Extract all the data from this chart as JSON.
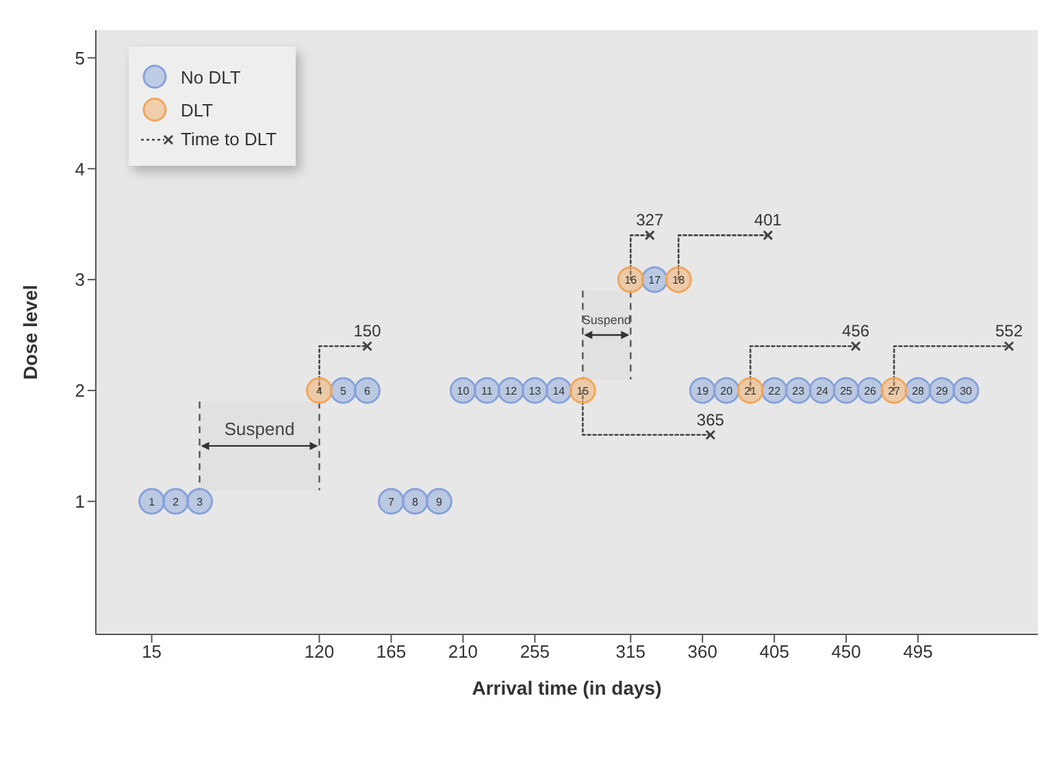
{
  "chart_data": {
    "type": "scatter",
    "xlabel": "Arrival time (in days)",
    "ylabel": "Dose level",
    "xlim": [
      -20,
      570
    ],
    "xticks": [
      15,
      120,
      165,
      210,
      255,
      315,
      360,
      405,
      450,
      495
    ],
    "ylim": [
      -0.2,
      5.25
    ],
    "yticks": [
      1,
      2,
      3,
      4,
      5
    ],
    "grid": false,
    "legend": "top left",
    "series": [
      {
        "name": "No DLT",
        "marker": "circle",
        "color": "#86a2da",
        "x": [
          15,
          30,
          45,
          135,
          150,
          165,
          180,
          195,
          210,
          225,
          240,
          255,
          270,
          330,
          360,
          375,
          405,
          420,
          435,
          450,
          465,
          495,
          510,
          525
        ],
        "values": [
          1,
          1,
          1,
          2,
          2,
          1,
          1,
          1,
          2,
          2,
          2,
          2,
          2,
          3,
          2,
          2,
          2,
          2,
          2,
          2,
          2,
          2,
          2,
          2
        ]
      },
      {
        "name": "DLT",
        "marker": "circle",
        "color": "#f2a65a",
        "x": [
          120,
          285,
          315,
          345,
          390,
          480
        ],
        "values": [
          2,
          2,
          3,
          3,
          2,
          2
        ]
      },
      {
        "name": "Time to DLT",
        "type": "line",
        "line_style": "dotted",
        "color": "#444444",
        "x": [
          120,
          120,
          150
        ],
        "values": [
          2,
          2.4,
          2.4
        ]
      },
      {
        "type": "line",
        "line_style": "dotted",
        "color": "#444444",
        "x": [
          285,
          285,
          365
        ],
        "values": [
          2,
          1.6,
          1.6
        ]
      },
      {
        "type": "line",
        "line_style": "dotted",
        "color": "#444444",
        "x": [
          315,
          315,
          327
        ],
        "values": [
          3,
          3.4,
          3.4
        ]
      },
      {
        "type": "line",
        "line_style": "dotted",
        "color": "#444444",
        "x": [
          345,
          345,
          401
        ],
        "values": [
          3,
          3.4,
          3.4
        ]
      },
      {
        "type": "line",
        "line_style": "dotted",
        "color": "#444444",
        "x": [
          390,
          390,
          456
        ],
        "values": [
          2,
          2.4,
          2.4
        ]
      },
      {
        "type": "line",
        "line_style": "dotted",
        "color": "#444444",
        "x": [
          480,
          480,
          552
        ],
        "values": [
          2,
          2.4,
          2.4
        ]
      },
      {
        "marker": "cross",
        "color": "#444444",
        "x": [
          150,
          365,
          327,
          401,
          456,
          552
        ],
        "values": [
          2.4,
          1.6,
          3.4,
          3.4,
          2.4,
          2.4
        ]
      }
    ],
    "bands": [
      {
        "axis": "x",
        "from": 45,
        "to": 120,
        "label": "Suspend",
        "color": "#dedede"
      },
      {
        "axis": "x",
        "from": 285,
        "to": 315,
        "label": "Suspend",
        "color": "#dedede"
      }
    ],
    "annotations": [
      {
        "text": "150",
        "x": 150,
        "y": 2.4
      },
      {
        "text": "365",
        "x": 365,
        "y": 1.6
      },
      {
        "text": "327",
        "x": 327,
        "y": 3.4
      },
      {
        "text": "401",
        "x": 401,
        "y": 3.4
      },
      {
        "text": "456",
        "x": 456,
        "y": 2.4
      },
      {
        "text": "552",
        "x": 552,
        "y": 2.4
      },
      {
        "text": "10",
        "x": 210,
        "y": 2
      },
      {
        "text": "11",
        "x": 225,
        "y": 2
      },
      {
        "text": "12",
        "x": 240,
        "y": 2
      },
      {
        "text": "13",
        "x": 255,
        "y": 2
      },
      {
        "text": "14",
        "x": 270,
        "y": 2
      },
      {
        "text": "15",
        "x": 285,
        "y": 2
      },
      {
        "text": "16",
        "x": 315,
        "y": 3
      },
      {
        "text": "17",
        "x": 330,
        "y": 3
      },
      {
        "text": "18",
        "x": 345,
        "y": 3
      },
      {
        "text": "19",
        "x": 360,
        "y": 2
      },
      {
        "text": "20",
        "x": 375,
        "y": 2
      },
      {
        "text": "21",
        "x": 390,
        "y": 2
      },
      {
        "text": "22",
        "x": 405,
        "y": 2
      },
      {
        "text": "23",
        "x": 420,
        "y": 2
      },
      {
        "text": "24",
        "x": 435,
        "y": 2
      },
      {
        "text": "25",
        "x": 450,
        "y": 2
      },
      {
        "text": "26",
        "x": 465,
        "y": 2
      },
      {
        "text": "27",
        "x": 480,
        "y": 2
      },
      {
        "text": "28",
        "x": 495,
        "y": 2
      },
      {
        "text": "29",
        "x": 510,
        "y": 2
      },
      {
        "text": "30",
        "x": 525,
        "y": 2
      },
      {
        "text": "1",
        "x": 15,
        "y": 1
      },
      {
        "text": "2",
        "x": 30,
        "y": 1
      },
      {
        "text": "3",
        "x": 45,
        "y": 1
      },
      {
        "text": "4",
        "x": 120,
        "y": 2
      },
      {
        "text": "5",
        "x": 135,
        "y": 2
      },
      {
        "text": "6",
        "x": 150,
        "y": 2
      },
      {
        "text": "7",
        "x": 165,
        "y": 1
      },
      {
        "text": "8",
        "x": 180,
        "y": 1
      },
      {
        "text": "9",
        "x": 195,
        "y": 1
      }
    ]
  }
}
